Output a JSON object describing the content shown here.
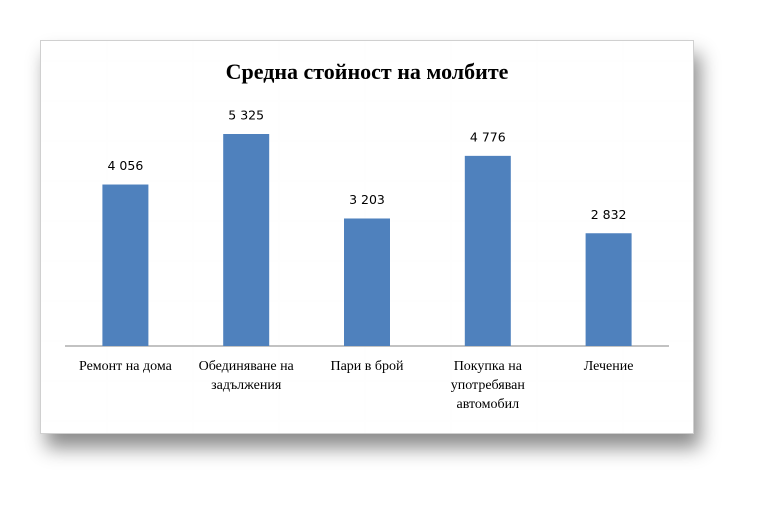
{
  "chart_data": {
    "type": "bar",
    "title": "Средна стойност на молбите",
    "categories": [
      "Ремонт на дома",
      "Обединяване на задължения",
      "Пари в брой",
      "Покупка на употребяван автомобил",
      "Лечение"
    ],
    "values": [
      4056,
      5325,
      3203,
      4776,
      2832
    ],
    "value_labels": [
      "4 056",
      "5 325",
      "3 203",
      "4 776",
      "2 832"
    ],
    "color": "#4f81bd"
  }
}
